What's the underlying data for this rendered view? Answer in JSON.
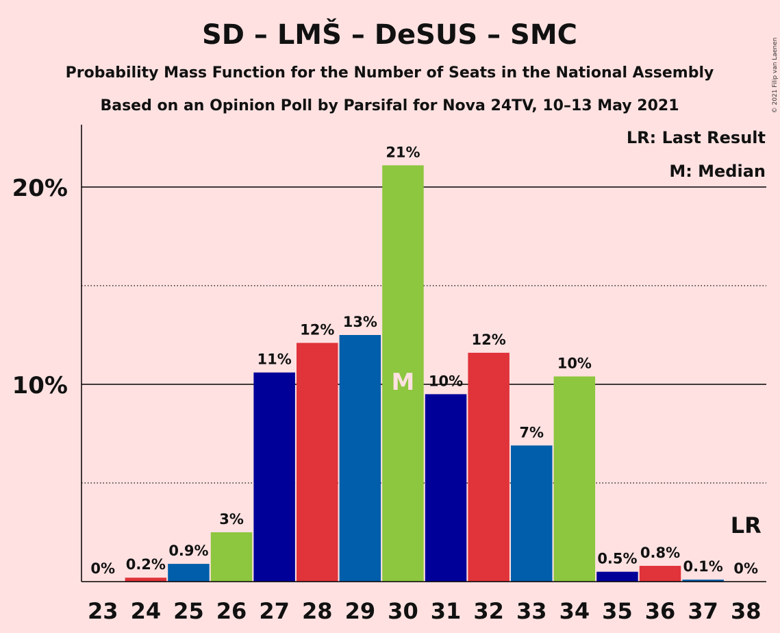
{
  "copyright": "© 2021 Filip van Laenen",
  "chart_data": {
    "type": "bar",
    "title": "SD – LMŠ – DeSUS – SMC",
    "subtitle1": "Probability Mass Function for the Number of Seats in the National Assembly",
    "subtitle2": "Based on an Opinion Poll by Parsifal for Nova 24TV, 10–13 May 2021",
    "xlabel": "",
    "ylabel": "",
    "ylim": [
      0,
      23
    ],
    "y_ticks": [
      {
        "value": 10,
        "label": "10%"
      },
      {
        "value": 20,
        "label": "20%"
      }
    ],
    "dotted_gridlines": [
      5,
      15
    ],
    "categories": [
      "23",
      "24",
      "25",
      "26",
      "27",
      "28",
      "29",
      "30",
      "31",
      "32",
      "33",
      "34",
      "35",
      "36",
      "37",
      "38"
    ],
    "values": [
      0,
      0.2,
      0.9,
      2.5,
      10.6,
      12.1,
      12.5,
      21.1,
      9.5,
      11.6,
      6.9,
      10.4,
      0.5,
      0.8,
      0.1,
      0
    ],
    "value_labels": [
      "0%",
      "0.2%",
      "0.9%",
      "3%",
      "11%",
      "12%",
      "13%",
      "21%",
      "10%",
      "12%",
      "7%",
      "10%",
      "0.5%",
      "0.8%",
      "0.1%",
      "0%"
    ],
    "bar_colors": [
      "#000099",
      "#E0333A",
      "#005EAA",
      "#8DC63F",
      "#000099",
      "#E0333A",
      "#005EAA",
      "#8DC63F",
      "#000099",
      "#E0333A",
      "#005EAA",
      "#8DC63F",
      "#000099",
      "#E0333A",
      "#005EAA",
      "#8DC63F"
    ],
    "median": {
      "category": "30",
      "marker": "M"
    },
    "last_result": {
      "category": "38",
      "marker": "LR"
    },
    "legend": {
      "position": "top-right",
      "entries": [
        "LR: Last Result",
        "M: Median"
      ]
    },
    "grid": true
  }
}
